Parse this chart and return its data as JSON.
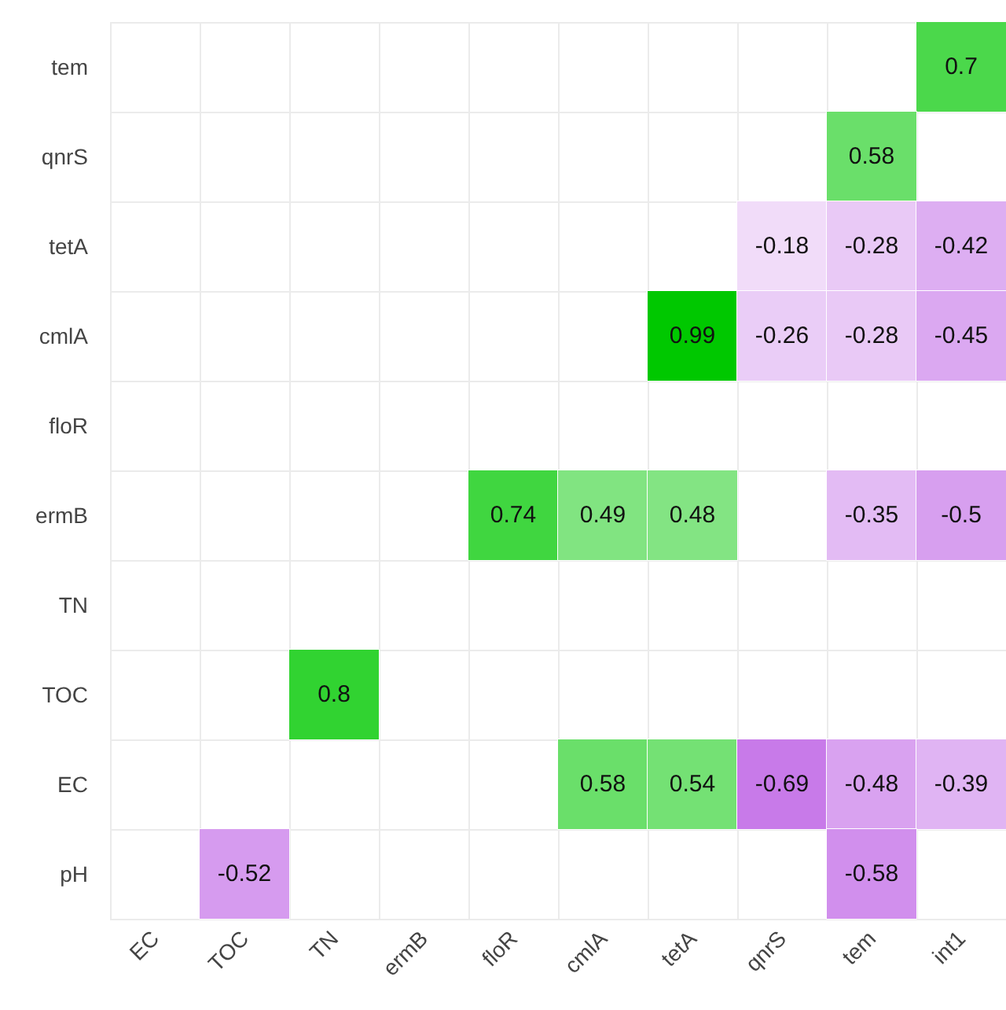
{
  "chart_data": {
    "type": "heatmap",
    "categories": [
      "EC",
      "TOC",
      "TN",
      "ermB",
      "floR",
      "cmlA",
      "tetA",
      "qnrS",
      "tem",
      "int1"
    ],
    "y_categories": [
      "tem",
      "qnrS",
      "tetA",
      "cmlA",
      "floR",
      "ermB",
      "TN",
      "TOC",
      "EC",
      "pH"
    ],
    "cells": [
      [
        null,
        null,
        null,
        null,
        null,
        null,
        null,
        null,
        null,
        0.7
      ],
      [
        null,
        null,
        null,
        null,
        null,
        null,
        null,
        null,
        0.58,
        null
      ],
      [
        null,
        null,
        null,
        null,
        null,
        null,
        null,
        -0.18,
        -0.28,
        -0.42
      ],
      [
        null,
        null,
        null,
        null,
        null,
        null,
        0.99,
        -0.26,
        -0.28,
        -0.45
      ],
      [
        null,
        null,
        null,
        null,
        null,
        null,
        null,
        null,
        null,
        null
      ],
      [
        null,
        null,
        null,
        null,
        0.74,
        0.49,
        0.48,
        null,
        -0.35,
        -0.5
      ],
      [
        null,
        null,
        null,
        null,
        null,
        null,
        null,
        null,
        null,
        null
      ],
      [
        null,
        null,
        0.8,
        null,
        null,
        null,
        null,
        null,
        null,
        null
      ],
      [
        null,
        null,
        null,
        null,
        null,
        0.58,
        0.54,
        -0.69,
        -0.48,
        -0.39
      ],
      [
        null,
        -0.52,
        null,
        null,
        null,
        null,
        null,
        null,
        -0.58,
        null
      ]
    ],
    "data_labels": true,
    "grid": true
  }
}
